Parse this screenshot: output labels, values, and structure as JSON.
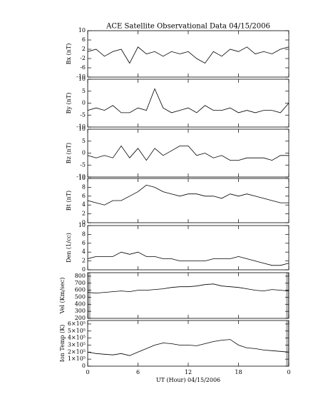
{
  "chart_data": [
    {
      "type": "line",
      "title": "ACE Satellite Observational Data   04/15/2006",
      "ylabel": "Bx (nT)",
      "color": "#000000",
      "x": [
        0,
        1,
        2,
        3,
        4,
        5,
        6,
        7,
        8,
        9,
        10,
        11,
        12,
        13,
        14,
        15,
        16,
        17,
        18,
        19,
        20,
        21,
        22,
        23,
        24
      ],
      "values": [
        1,
        2,
        -1,
        1,
        2,
        -4,
        3,
        0,
        1,
        -1,
        1,
        0,
        1,
        -2,
        -4,
        1,
        -1,
        2,
        1,
        3,
        0,
        1,
        0,
        2,
        3
      ],
      "ylim": [
        -10,
        10
      ],
      "yticks": [
        -10,
        -6,
        -2,
        2,
        6,
        10
      ]
    },
    {
      "type": "line",
      "ylabel": "By (nT)",
      "color": "#000000",
      "x": [
        0,
        1,
        2,
        3,
        4,
        5,
        6,
        7,
        8,
        9,
        10,
        11,
        12,
        13,
        14,
        15,
        16,
        17,
        18,
        19,
        20,
        21,
        22,
        23,
        24
      ],
      "values": [
        -3,
        -2,
        -3,
        -1,
        -4,
        -4,
        -2,
        -3,
        6,
        -2,
        -4,
        -3,
        -2,
        -4,
        -1,
        -3,
        -3,
        -2,
        -4,
        -3,
        -4,
        -3,
        -3,
        -4,
        0
      ],
      "ylim": [
        -10,
        10
      ],
      "yticks": [
        -10,
        -5,
        0,
        5,
        10
      ]
    },
    {
      "type": "line",
      "ylabel": "Bz (nT)",
      "color": "#000000",
      "x": [
        0,
        1,
        2,
        3,
        4,
        5,
        6,
        7,
        8,
        9,
        10,
        11,
        12,
        13,
        14,
        15,
        16,
        17,
        18,
        19,
        20,
        21,
        22,
        23,
        24
      ],
      "values": [
        -1,
        -2,
        -1,
        -2,
        3,
        -2,
        2,
        -3,
        2,
        -1,
        1,
        3,
        3,
        -1,
        0,
        -2,
        -1,
        -3,
        -3,
        -2,
        -2,
        -2,
        -3,
        -1,
        -1
      ],
      "ylim": [
        -10,
        10
      ],
      "yticks": [
        -10,
        -5,
        0,
        5,
        10
      ]
    },
    {
      "type": "line",
      "ylabel": "Bt (nT)",
      "color": "#000000",
      "x": [
        0,
        1,
        2,
        3,
        4,
        5,
        6,
        7,
        8,
        9,
        10,
        11,
        12,
        13,
        14,
        15,
        16,
        17,
        18,
        19,
        20,
        21,
        22,
        23,
        24
      ],
      "values": [
        5,
        4.5,
        4,
        5,
        5,
        6,
        7,
        8.5,
        8,
        7,
        6.5,
        6,
        6.5,
        6.5,
        6,
        6,
        5.5,
        6.5,
        6,
        6.5,
        6,
        5.5,
        5,
        4.5,
        4.5
      ],
      "ylim": [
        0,
        10
      ],
      "yticks": [
        0,
        2,
        4,
        6,
        8,
        10
      ]
    },
    {
      "type": "line",
      "ylabel": "Den (1/cc)",
      "color": "#000000",
      "x": [
        0,
        1,
        2,
        3,
        4,
        5,
        6,
        7,
        8,
        9,
        10,
        11,
        12,
        13,
        14,
        15,
        16,
        17,
        18,
        19,
        20,
        21,
        22,
        23,
        24
      ],
      "values": [
        2.5,
        3,
        3,
        3,
        4,
        3.5,
        4,
        3,
        3,
        2.5,
        2.5,
        2,
        2,
        2,
        2,
        2.5,
        2.5,
        2.5,
        3,
        2.5,
        2,
        1.5,
        1,
        1,
        1.5
      ],
      "ylim": [
        0,
        10
      ],
      "yticks": [
        0,
        2,
        4,
        6,
        8,
        10
      ]
    },
    {
      "type": "line",
      "ylabel": "Vel (Km/sec)",
      "color": "#000000",
      "x": [
        0,
        1,
        2,
        3,
        4,
        5,
        6,
        7,
        8,
        9,
        10,
        11,
        12,
        13,
        14,
        15,
        16,
        17,
        18,
        19,
        20,
        21,
        22,
        23,
        24
      ],
      "values": [
        570,
        560,
        570,
        580,
        590,
        580,
        600,
        600,
        610,
        620,
        640,
        650,
        650,
        660,
        680,
        690,
        660,
        650,
        640,
        620,
        600,
        590,
        610,
        600,
        590
      ],
      "ylim": [
        200,
        850
      ],
      "yticks": [
        200,
        300,
        400,
        500,
        600,
        700,
        800
      ]
    },
    {
      "type": "line",
      "ylabel": "Ion Temp (K)",
      "xlabel": "UT (Hour)  04/15/2006",
      "color": "#000000",
      "x": [
        0,
        1,
        2,
        3,
        4,
        5,
        6,
        7,
        8,
        9,
        10,
        11,
        12,
        13,
        14,
        15,
        16,
        17,
        18,
        19,
        20,
        21,
        22,
        23,
        24
      ],
      "values": [
        200000,
        180000,
        170000,
        160000,
        180000,
        150000,
        200000,
        250000,
        300000,
        330000,
        320000,
        300000,
        300000,
        290000,
        320000,
        350000,
        370000,
        380000,
        300000,
        260000,
        250000,
        230000,
        220000,
        210000,
        200000
      ],
      "ylim": [
        0,
        650000
      ],
      "yticks": [
        0,
        {
          "value": 100000,
          "label": "1×10⁵"
        },
        {
          "value": 200000,
          "label": "2×10⁵"
        },
        {
          "value": 300000,
          "label": "3×10⁵"
        },
        {
          "value": 400000,
          "label": "4×10⁵"
        },
        {
          "value": 500000,
          "label": "5×10⁵"
        },
        {
          "value": 600000,
          "label": "6×10⁵"
        }
      ],
      "xlim": [
        0,
        24
      ],
      "xticks": [
        0,
        6,
        12,
        18,
        {
          "value": 24,
          "label": "0"
        }
      ]
    }
  ]
}
